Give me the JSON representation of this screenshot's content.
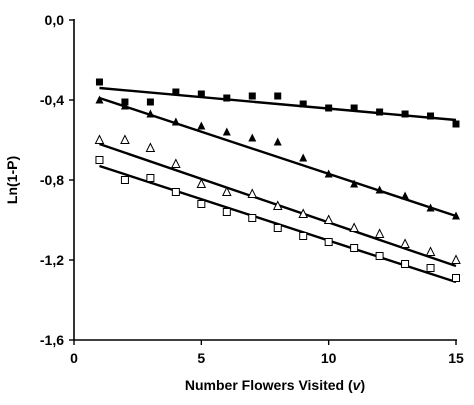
{
  "chart_data": {
    "type": "scatter",
    "xlabel_prefix": "Number Flowers Visited (",
    "xlabel_var": "v",
    "xlabel_suffix": ")",
    "ylabel": "Ln(1-P)",
    "xlim": [
      0,
      15
    ],
    "ylim": [
      -1.6,
      0.0
    ],
    "xticks": [
      0,
      5,
      10,
      15
    ],
    "yticks": [
      0.0,
      -0.4,
      -0.8,
      -1.2,
      -1.6
    ],
    "ytick_labels": [
      "0,0",
      "-0,4",
      "-0,8",
      "-1,2",
      "-1,6"
    ],
    "grid": false,
    "legend": "none",
    "series": [
      {
        "marker": "filled-square",
        "x": [
          1,
          2,
          3,
          4,
          5,
          6,
          7,
          8,
          9,
          10,
          11,
          12,
          13,
          14,
          15
        ],
        "y": [
          -0.31,
          -0.41,
          -0.41,
          -0.36,
          -0.37,
          -0.39,
          -0.38,
          -0.38,
          -0.42,
          -0.44,
          -0.44,
          -0.46,
          -0.47,
          -0.48,
          -0.52
        ],
        "fit": {
          "x": [
            1,
            15
          ],
          "y": [
            -0.34,
            -0.5
          ]
        }
      },
      {
        "marker": "filled-triangle",
        "x": [
          1,
          2,
          3,
          4,
          5,
          6,
          7,
          8,
          9,
          10,
          11,
          12,
          13,
          14,
          15
        ],
        "y": [
          -0.4,
          -0.43,
          -0.47,
          -0.51,
          -0.53,
          -0.56,
          -0.59,
          -0.61,
          -0.69,
          -0.77,
          -0.82,
          -0.85,
          -0.88,
          -0.94,
          -0.98
        ],
        "fit": {
          "x": [
            1,
            15
          ],
          "y": [
            -0.39,
            -0.98
          ]
        }
      },
      {
        "marker": "open-triangle",
        "x": [
          1,
          2,
          3,
          4,
          5,
          6,
          7,
          8,
          9,
          10,
          11,
          12,
          13,
          14,
          15
        ],
        "y": [
          -0.6,
          -0.6,
          -0.64,
          -0.72,
          -0.82,
          -0.86,
          -0.87,
          -0.93,
          -0.97,
          -1.0,
          -1.04,
          -1.07,
          -1.12,
          -1.16,
          -1.2
        ],
        "fit": {
          "x": [
            1,
            15
          ],
          "y": [
            -0.62,
            -1.23
          ]
        }
      },
      {
        "marker": "open-square",
        "x": [
          1,
          2,
          3,
          4,
          5,
          6,
          7,
          8,
          9,
          10,
          11,
          12,
          13,
          14,
          15
        ],
        "y": [
          -0.7,
          -0.8,
          -0.79,
          -0.86,
          -0.92,
          -0.96,
          -0.99,
          -1.04,
          -1.08,
          -1.11,
          -1.14,
          -1.18,
          -1.22,
          -1.24,
          -1.29
        ],
        "fit": {
          "x": [
            1,
            15
          ],
          "y": [
            -0.73,
            -1.31
          ]
        }
      }
    ]
  }
}
